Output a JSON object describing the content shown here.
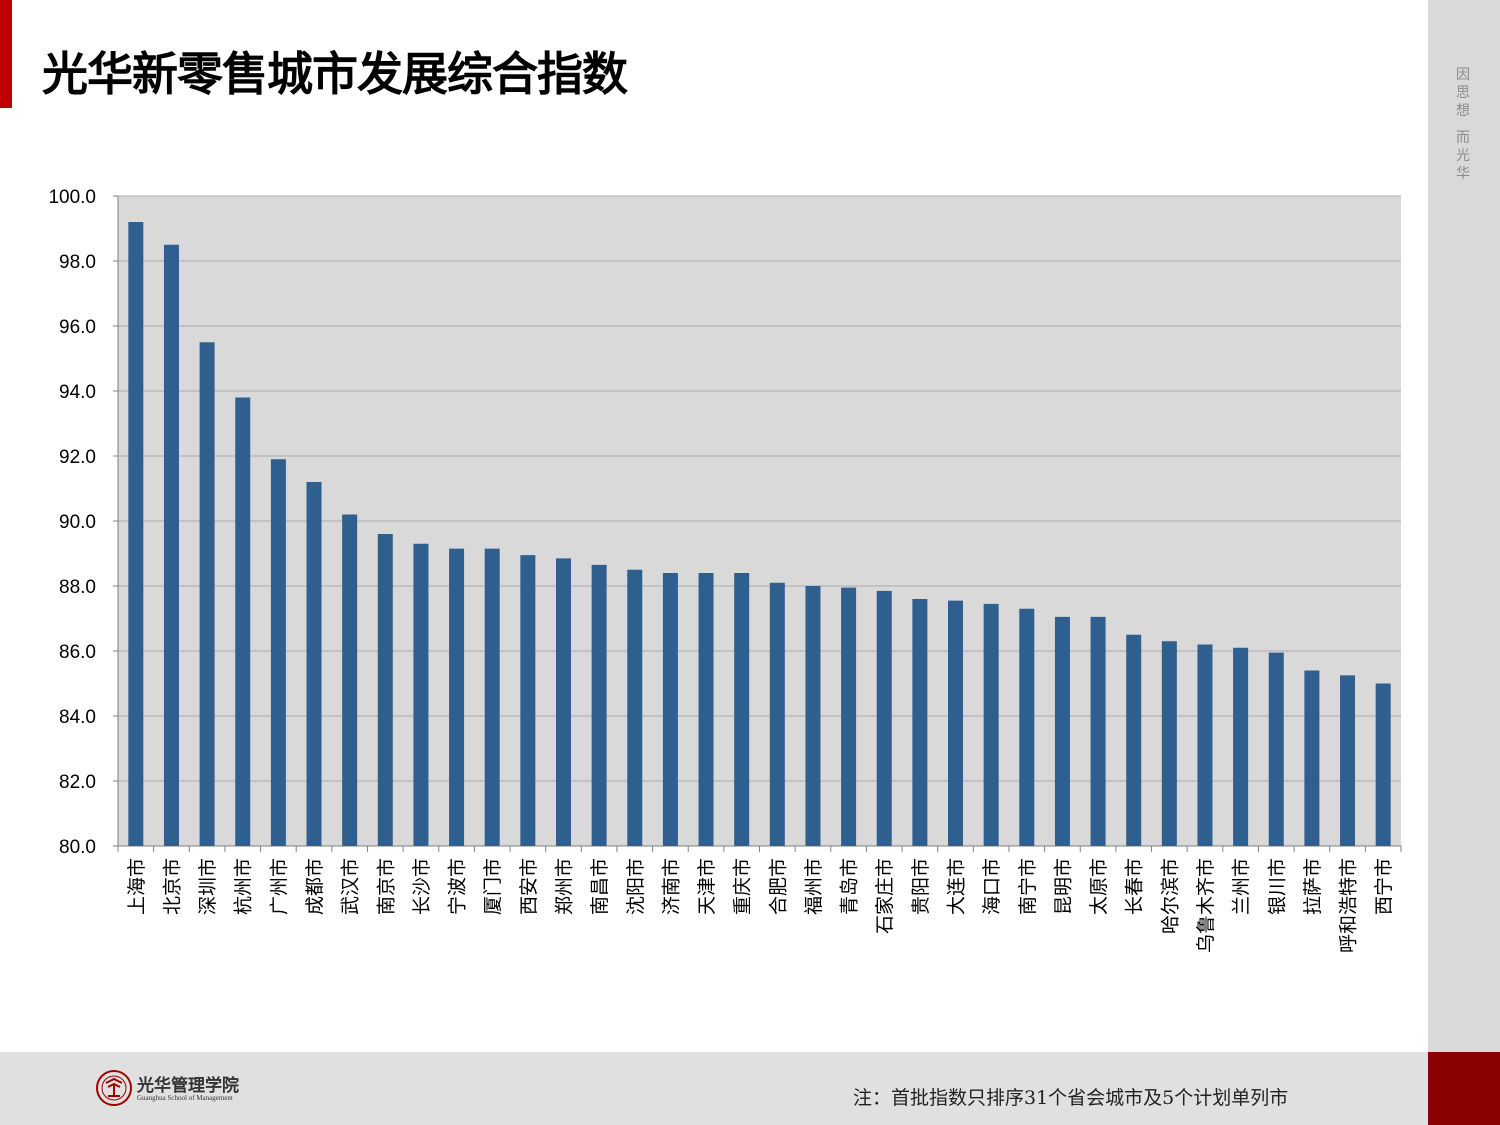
{
  "title": "光华新零售城市发展综合指数",
  "motto": [
    "因",
    "思",
    "想",
    "而",
    "光",
    "华"
  ],
  "brand_colors": {
    "red": "#c00000",
    "dark_red": "#8b0000",
    "bar": "#2f5f8f",
    "plot_bg": "#d9d9d9"
  },
  "logo": {
    "name": "光华管理学院",
    "subtitle": "Guanghua School of Management",
    "icon": "peking-university-seal-icon"
  },
  "footnote": "注：首批指数只排序31个省会城市及5个计划单列市",
  "chart_data": {
    "type": "bar",
    "title": "",
    "xlabel": "",
    "ylabel": "",
    "ylim": [
      80,
      100
    ],
    "yticks": [
      "80.0",
      "82.0",
      "84.0",
      "86.0",
      "88.0",
      "90.0",
      "92.0",
      "94.0",
      "96.0",
      "98.0",
      "100.0"
    ],
    "grid": true,
    "categories": [
      "上海市",
      "北京市",
      "深圳市",
      "杭州市",
      "广州市",
      "成都市",
      "武汉市",
      "南京市",
      "长沙市",
      "宁波市",
      "厦门市",
      "西安市",
      "郑州市",
      "南昌市",
      "沈阳市",
      "济南市",
      "天津市",
      "重庆市",
      "合肥市",
      "福州市",
      "青岛市",
      "石家庄市",
      "贵阳市",
      "大连市",
      "海口市",
      "南宁市",
      "昆明市",
      "太原市",
      "长春市",
      "哈尔滨市",
      "乌鲁木齐市",
      "兰州市",
      "银川市",
      "拉萨市",
      "呼和浩特市",
      "西宁市"
    ],
    "values": [
      99.2,
      98.5,
      95.5,
      93.8,
      91.9,
      91.2,
      90.2,
      89.6,
      89.3,
      89.15,
      89.15,
      88.95,
      88.85,
      88.65,
      88.5,
      88.4,
      88.4,
      88.4,
      88.1,
      88.0,
      87.95,
      87.85,
      87.6,
      87.55,
      87.45,
      87.3,
      87.05,
      87.05,
      86.5,
      86.3,
      86.2,
      86.1,
      85.95,
      85.4,
      85.25,
      85.0
    ]
  }
}
